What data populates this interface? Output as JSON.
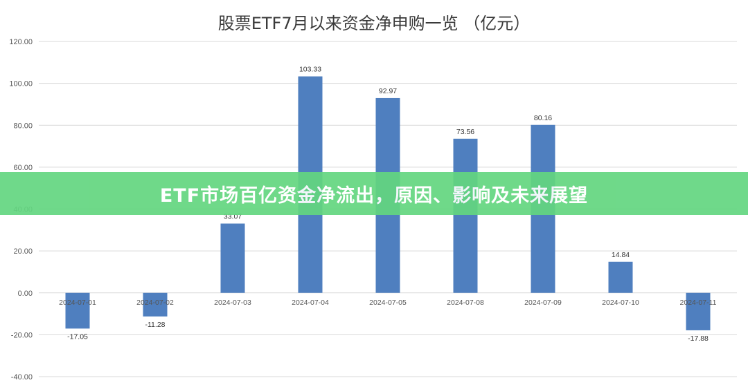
{
  "banner": {
    "text": "ETF市场百亿资金净流出，原因、影响及未来展望",
    "color": "#63d680"
  },
  "chart_data": {
    "type": "bar",
    "title": "股票ETF7月以来资金净申购一览 （亿元）",
    "xlabel": "",
    "ylabel": "",
    "categories": [
      "2024-07-01",
      "2024-07-02",
      "2024-07-03",
      "2024-07-04",
      "2024-07-05",
      "2024-07-08",
      "2024-07-09",
      "2024-07-10",
      "2024-07-11"
    ],
    "values": [
      -17.05,
      -11.28,
      33.07,
      103.33,
      92.97,
      73.56,
      80.16,
      14.84,
      -17.88
    ],
    "data_labels": [
      "-17.05",
      "-11.28",
      "33.07",
      "103.33",
      "92.97",
      "73.56",
      "80.16",
      "14.84",
      "-17.88"
    ],
    "ylim": [
      -40,
      120
    ],
    "yticks": [
      "-40.00",
      "-20.00",
      "0.00",
      "20.00",
      "40.00",
      "60.00",
      "80.00",
      "100.00",
      "120.00"
    ],
    "grid": true,
    "legend": "none",
    "bar_color": "#4f7fbf"
  }
}
